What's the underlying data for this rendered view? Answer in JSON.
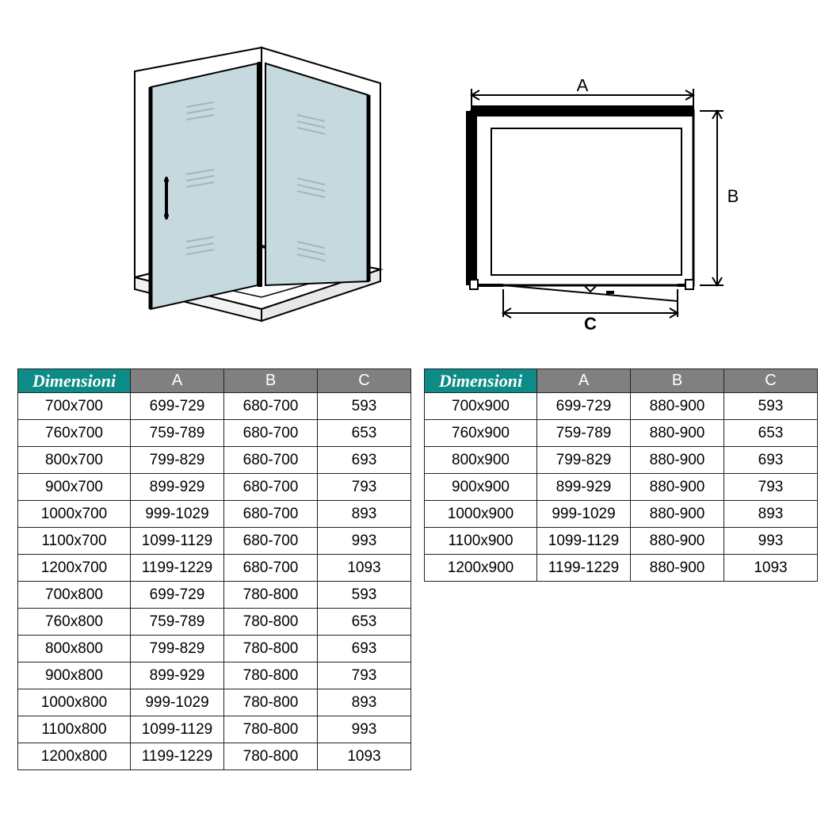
{
  "headers": {
    "dim": "Dimensioni",
    "a": "A",
    "b": "B",
    "c": "C"
  },
  "plan_labels": {
    "a": "A",
    "b": "B",
    "c": "C"
  },
  "colors": {
    "header_dim_bg": "#0d8b87",
    "header_col_bg": "#808080",
    "border": "#222222",
    "glass": "#c5d9de",
    "glass_line": "#9eb8bf"
  },
  "table1": {
    "columns": [
      "Dimensioni",
      "A",
      "B",
      "C"
    ],
    "rows": [
      [
        "700x700",
        "699-729",
        "680-700",
        "593"
      ],
      [
        "760x700",
        "759-789",
        "680-700",
        "653"
      ],
      [
        "800x700",
        "799-829",
        "680-700",
        "693"
      ],
      [
        "900x700",
        "899-929",
        "680-700",
        "793"
      ],
      [
        "1000x700",
        "999-1029",
        "680-700",
        "893"
      ],
      [
        "1100x700",
        "1099-1129",
        "680-700",
        "993"
      ],
      [
        "1200x700",
        "1199-1229",
        "680-700",
        "1093"
      ],
      [
        "700x800",
        "699-729",
        "780-800",
        "593"
      ],
      [
        "760x800",
        "759-789",
        "780-800",
        "653"
      ],
      [
        "800x800",
        "799-829",
        "780-800",
        "693"
      ],
      [
        "900x800",
        "899-929",
        "780-800",
        "793"
      ],
      [
        "1000x800",
        "999-1029",
        "780-800",
        "893"
      ],
      [
        "1100x800",
        "1099-1129",
        "780-800",
        "993"
      ],
      [
        "1200x800",
        "1199-1229",
        "780-800",
        "1093"
      ]
    ]
  },
  "table2": {
    "columns": [
      "Dimensioni",
      "A",
      "B",
      "C"
    ],
    "rows": [
      [
        "700x900",
        "699-729",
        "880-900",
        "593"
      ],
      [
        "760x900",
        "759-789",
        "880-900",
        "653"
      ],
      [
        "800x900",
        "799-829",
        "880-900",
        "693"
      ],
      [
        "900x900",
        "899-929",
        "880-900",
        "793"
      ],
      [
        "1000x900",
        "999-1029",
        "880-900",
        "893"
      ],
      [
        "1100x900",
        "1099-1129",
        "880-900",
        "993"
      ],
      [
        "1200x900",
        "1199-1229",
        "880-900",
        "1093"
      ]
    ]
  }
}
